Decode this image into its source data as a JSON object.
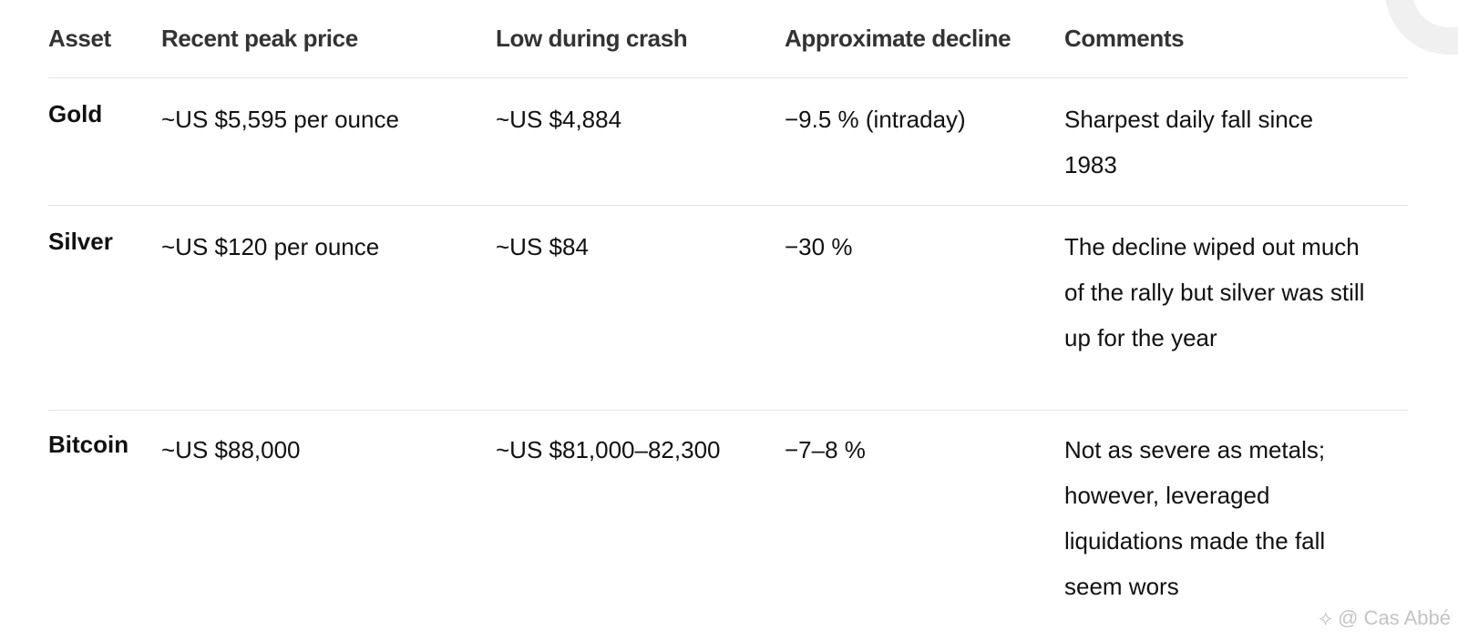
{
  "table": {
    "headers": [
      "Asset",
      "Recent peak price",
      "Low during crash",
      "Approximate decline",
      "Comments"
    ],
    "rows": [
      {
        "asset": "Gold",
        "peak": "~US $5,595 per ounce",
        "low": "~US $4,884",
        "decline": "−9.5 % (intraday)",
        "comment": "Sharpest daily fall since 1983"
      },
      {
        "asset": "Silver",
        "peak": "~US $120 per ounce",
        "low": "~US $84",
        "decline": "−30 %",
        "comment": "The decline wiped out much of the rally but silver was still up for the year"
      },
      {
        "asset": "Bitcoin",
        "peak": "~US $88,000",
        "low": "~US $81,000–82,300",
        "decline": "−7–8 %",
        "comment": "Not as severe as metals; however, leveraged liquidations made the fall seem wors"
      }
    ]
  },
  "watermark": {
    "icon": "binance-diamond-icon",
    "text": "@ Cas Abbé"
  }
}
